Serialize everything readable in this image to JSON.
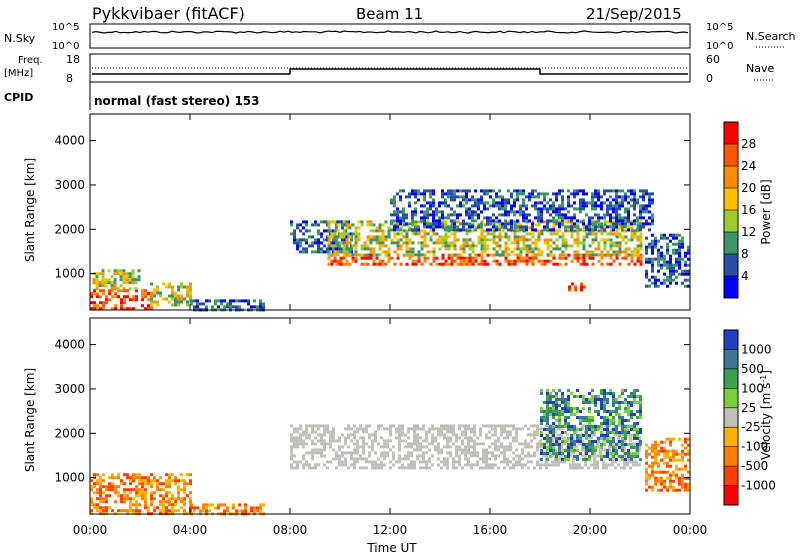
{
  "header": {
    "radar": "Pykkvibaer (fitACF)",
    "beam": "Beam 11",
    "date": "21/Sep/2015"
  },
  "status": {
    "nsky_label": "N.Sky",
    "nsearch_label": "N.Search",
    "freq_label_1": "Freq.",
    "freq_label_2": "[MHz]",
    "nave_label": "Nave",
    "cpid_label": "CPID",
    "cpid_text": "normal (fast stereo) 153",
    "nsky_ticks": [
      "10^5",
      "10^0"
    ],
    "nsearch_ticks": [
      "10^5",
      "10^0"
    ],
    "freq_ticks": [
      "18",
      "8"
    ],
    "nave_ticks": [
      "60",
      "0"
    ]
  },
  "legends": {
    "power": {
      "label": "Power [dB]",
      "ticks": [
        "28",
        "24",
        "20",
        "16",
        "12",
        "8",
        "4"
      ],
      "colors": [
        "#ff0000",
        "#ff5500",
        "#ff8c00",
        "#ffc000",
        "#a0c830",
        "#3c9664",
        "#2850a0",
        "#0000ff"
      ]
    },
    "velocity": {
      "label": "Velocity [m s",
      "label_sup": "-1",
      "label_end": "]",
      "ticks": [
        "1000",
        "500",
        "100",
        "25",
        "-25",
        "-100",
        "-500",
        "-1000"
      ],
      "colors": [
        "#2040c0",
        "#3c7890",
        "#3ca050",
        "#78d040",
        "#c0c0b8",
        "#ffb000",
        "#ff8000",
        "#ff4000",
        "#ff0000"
      ]
    }
  },
  "chart_data": [
    {
      "type": "heatmap",
      "title": "Power",
      "ylabel": "Slant Range [km]",
      "xlabel": "",
      "ylim": [
        180,
        4600
      ],
      "xlim": [
        0,
        24
      ],
      "yticks": [
        1000,
        2000,
        3000,
        4000
      ],
      "regions": [
        {
          "t0": 0.0,
          "t1": 2.5,
          "r0": 220,
          "r1": 650,
          "level": "high"
        },
        {
          "t0": 0.1,
          "t1": 2.0,
          "r0": 650,
          "r1": 1100,
          "level": "mid"
        },
        {
          "t0": 2.4,
          "t1": 4.0,
          "r0": 300,
          "r1": 800,
          "level": "mid"
        },
        {
          "t0": 4.0,
          "t1": 7.0,
          "r0": 200,
          "r1": 420,
          "level": "low"
        },
        {
          "t0": 8.0,
          "t1": 10.5,
          "r0": 1500,
          "r1": 2200,
          "level": "low"
        },
        {
          "t0": 9.5,
          "t1": 22.0,
          "r0": 1200,
          "r1": 1450,
          "level": "high"
        },
        {
          "t0": 9.5,
          "t1": 22.0,
          "r0": 1450,
          "r1": 2200,
          "level": "mid"
        },
        {
          "t0": 12.0,
          "t1": 22.5,
          "r0": 2000,
          "r1": 2900,
          "level": "low"
        },
        {
          "t0": 19.0,
          "t1": 19.8,
          "r0": 600,
          "r1": 800,
          "level": "high"
        },
        {
          "t0": 22.2,
          "t1": 24.0,
          "r0": 700,
          "r1": 1900,
          "level": "low"
        }
      ]
    },
    {
      "type": "heatmap",
      "title": "Velocity",
      "ylabel": "Slant Range [km]",
      "xlabel": "Time UT",
      "ylim": [
        180,
        4600
      ],
      "xlim": [
        0,
        24
      ],
      "yticks": [
        1000,
        2000,
        3000,
        4000
      ],
      "xticks": [
        "00:00",
        "04:00",
        "08:00",
        "12:00",
        "16:00",
        "20:00",
        "00:00"
      ],
      "regions": [
        {
          "t0": 0.0,
          "t1": 4.0,
          "r0": 220,
          "r1": 1100,
          "level": "neg"
        },
        {
          "t0": 4.0,
          "t1": 7.0,
          "r0": 200,
          "r1": 420,
          "level": "neg"
        },
        {
          "t0": 8.0,
          "t1": 22.0,
          "r0": 1200,
          "r1": 2200,
          "level": "zero"
        },
        {
          "t0": 18.0,
          "t1": 22.0,
          "r0": 1400,
          "r1": 3000,
          "level": "pos"
        },
        {
          "t0": 22.2,
          "t1": 24.0,
          "r0": 700,
          "r1": 1900,
          "level": "neg"
        }
      ]
    }
  ]
}
